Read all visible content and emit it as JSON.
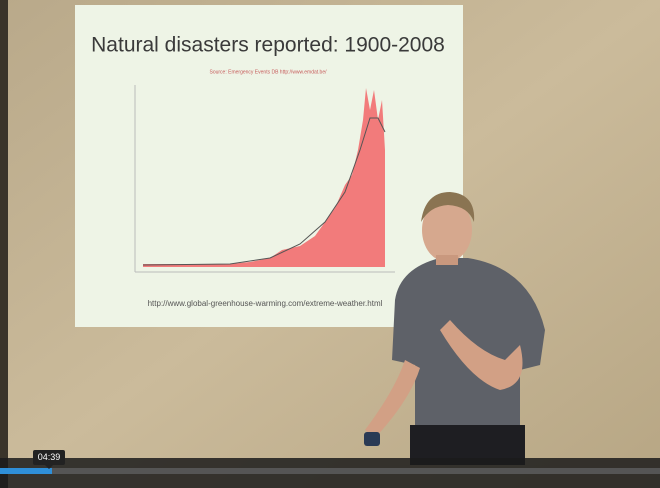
{
  "slide": {
    "title": "Natural disasters reported: 1900-2008",
    "source": "Source: Emergency Events DB http://www.emdat.be/",
    "url": "http://www.global-greenhouse-warming.com/extreme-weather.html"
  },
  "player": {
    "time": "04:39"
  }
}
